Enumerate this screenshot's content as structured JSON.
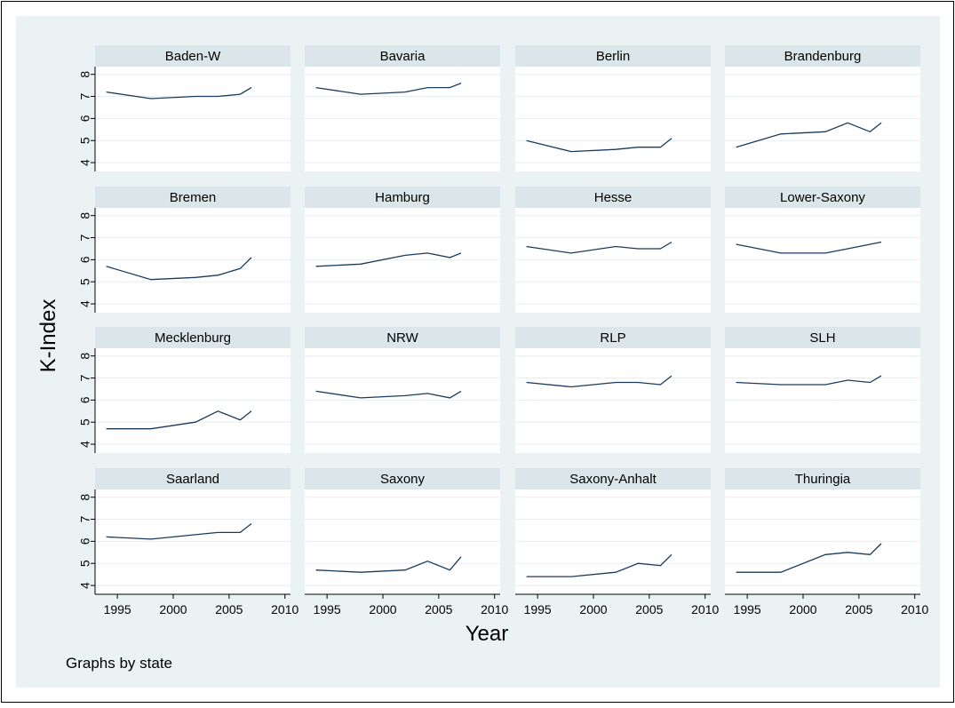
{
  "chart_data": {
    "type": "line",
    "layout": "small-multiples",
    "panels_by": "state",
    "xlabel": "Year",
    "ylabel": "K-Index",
    "note": "Graphs by state",
    "xlim": [
      1993,
      2010.5
    ],
    "ylim": [
      3.6,
      8.35
    ],
    "xticks": [
      1995,
      2000,
      2005,
      2010
    ],
    "yticks": [
      4,
      5,
      6,
      7,
      8
    ],
    "grid": true,
    "colors": {
      "background": "#eaf2f3",
      "plot_area": "#ffffff",
      "strip": "#dbe6ea",
      "line": "#1b3a5c",
      "grid": "#e8eef0",
      "text": "#000000"
    },
    "x": [
      1994,
      1998,
      2002,
      2004,
      2006,
      2007
    ],
    "panels": [
      {
        "state": "Baden-W",
        "values": [
          7.2,
          6.9,
          7.0,
          7.0,
          7.1,
          7.4
        ]
      },
      {
        "state": "Bavaria",
        "values": [
          7.4,
          7.1,
          7.2,
          7.4,
          7.4,
          7.6
        ]
      },
      {
        "state": "Berlin",
        "values": [
          5.0,
          4.5,
          4.6,
          4.7,
          4.7,
          5.1
        ]
      },
      {
        "state": "Brandenburg",
        "values": [
          4.7,
          5.3,
          5.4,
          5.8,
          5.4,
          5.8
        ]
      },
      {
        "state": "Bremen",
        "values": [
          5.7,
          5.1,
          5.2,
          5.3,
          5.6,
          6.1
        ]
      },
      {
        "state": "Hamburg",
        "values": [
          5.7,
          5.8,
          6.2,
          6.3,
          6.1,
          6.3
        ]
      },
      {
        "state": "Hesse",
        "values": [
          6.6,
          6.3,
          6.6,
          6.5,
          6.5,
          6.8
        ]
      },
      {
        "state": "Lower-Saxony",
        "values": [
          6.7,
          6.3,
          6.3,
          6.5,
          6.7,
          6.8
        ]
      },
      {
        "state": "Mecklenburg",
        "values": [
          4.7,
          4.7,
          5.0,
          5.5,
          5.1,
          5.5
        ]
      },
      {
        "state": "NRW",
        "values": [
          6.4,
          6.1,
          6.2,
          6.3,
          6.1,
          6.4
        ]
      },
      {
        "state": "RLP",
        "values": [
          6.8,
          6.6,
          6.8,
          6.8,
          6.7,
          7.1
        ]
      },
      {
        "state": "SLH",
        "values": [
          6.8,
          6.7,
          6.7,
          6.9,
          6.8,
          7.1
        ]
      },
      {
        "state": "Saarland",
        "values": [
          6.2,
          6.1,
          6.3,
          6.4,
          6.4,
          6.8
        ]
      },
      {
        "state": "Saxony",
        "values": [
          4.7,
          4.6,
          4.7,
          5.1,
          4.7,
          5.3
        ]
      },
      {
        "state": "Saxony-Anhalt",
        "values": [
          4.4,
          4.4,
          4.6,
          5.0,
          4.9,
          5.4
        ]
      },
      {
        "state": "Thuringia",
        "values": [
          4.6,
          4.6,
          5.4,
          5.5,
          5.4,
          5.9
        ]
      }
    ]
  }
}
